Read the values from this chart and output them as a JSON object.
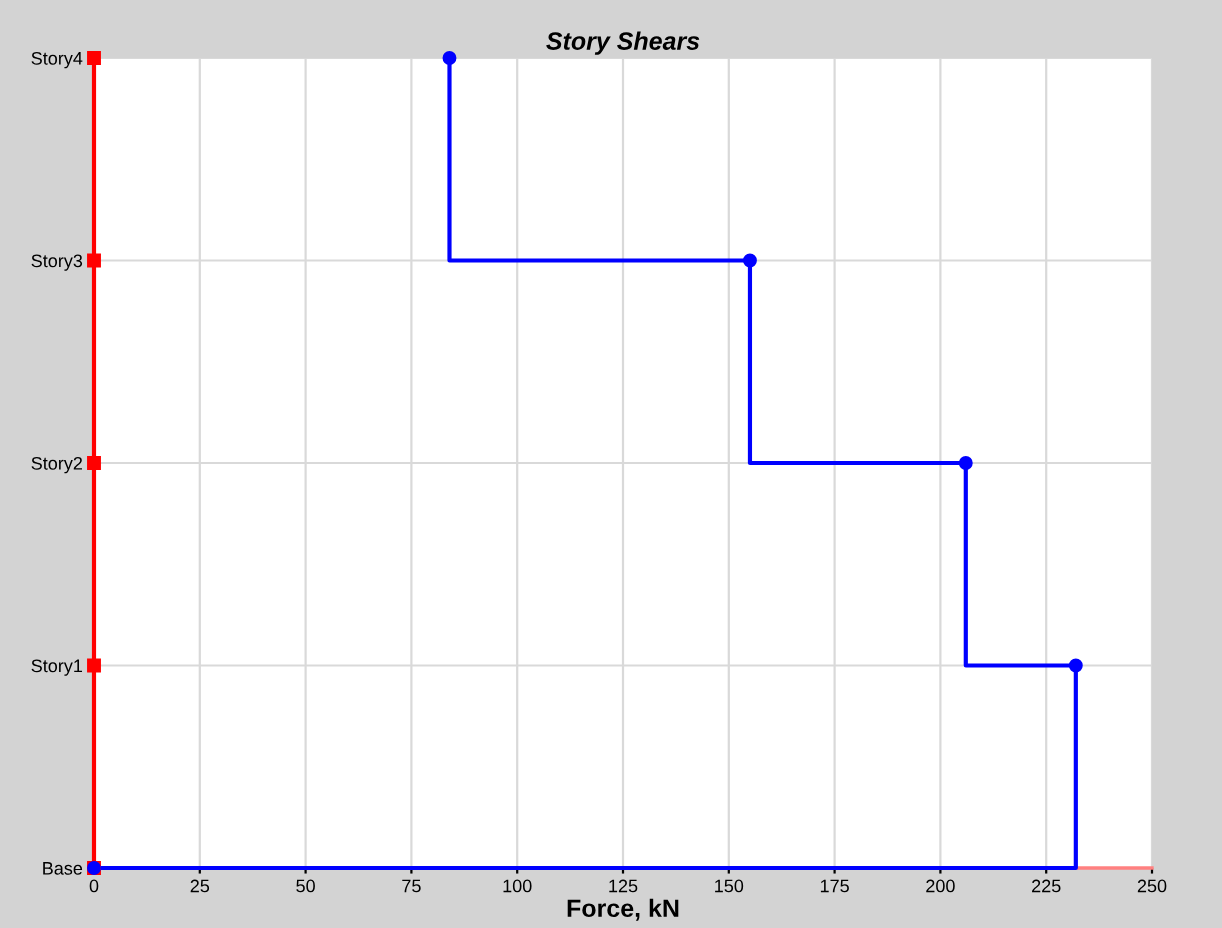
{
  "chart_data": {
    "type": "step",
    "orientation": "horizontal",
    "title": "Story Shears",
    "xlabel": "Force, kN",
    "categories": [
      "Story4",
      "Story3",
      "Story2",
      "Story1",
      "Base"
    ],
    "xlim": [
      0,
      250
    ],
    "xticks": [
      0,
      25,
      50,
      75,
      100,
      125,
      150,
      175,
      200,
      225,
      250
    ],
    "grid": true,
    "marker": "circle",
    "line_style": "solid",
    "series": [
      {
        "color": "#ff0000",
        "marker": "square",
        "values": [
          0,
          0,
          0,
          0,
          0
        ]
      },
      {
        "color": "#0000ff",
        "values": [
          84,
          155,
          206,
          232,
          0
        ]
      }
    ]
  }
}
